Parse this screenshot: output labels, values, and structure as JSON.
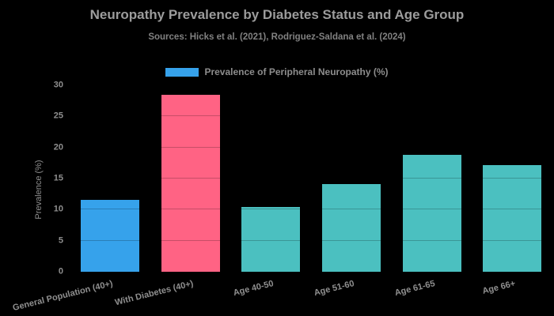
{
  "title": "Neuropathy Prevalence by Diabetes Status and Age Group",
  "subtitle": "Sources: Hicks et al. (2021), Rodriguez-Saldana et al. (2024)",
  "legend": {
    "label": "Prevalence of Peripheral Neuropathy (%)",
    "swatch_color": "#36a2eb"
  },
  "colors": {
    "background": "#000000",
    "blue": "#36a2eb",
    "pink": "#ff6384",
    "teal": "#4bc0c0",
    "text_gray": "#8f8f8f"
  },
  "chart_data": {
    "type": "bar",
    "title": "Neuropathy Prevalence by Diabetes Status and Age Group",
    "subtitle": "Sources: Hicks et al. (2021), Rodriguez-Saldana et al. (2024)",
    "categories": [
      "General Population (40+)",
      "With Diabetes (40+)",
      "Age 40-50",
      "Age 51-60",
      "Age 61-65",
      "Age 66+"
    ],
    "values": [
      11.6,
      28.5,
      10.4,
      14.1,
      18.8,
      17.2
    ],
    "bar_colors": [
      "#36a2eb",
      "#ff6384",
      "#4bc0c0",
      "#4bc0c0",
      "#4bc0c0",
      "#4bc0c0"
    ],
    "series_name": "Prevalence of Peripheral Neuropathy (%)",
    "xlabel": "",
    "ylabel": "Prevalence (%)",
    "ylim": [
      0,
      30
    ],
    "yticks": [
      0,
      5,
      10,
      15,
      20,
      25,
      30
    ],
    "grid": true,
    "legend_position": "top"
  }
}
